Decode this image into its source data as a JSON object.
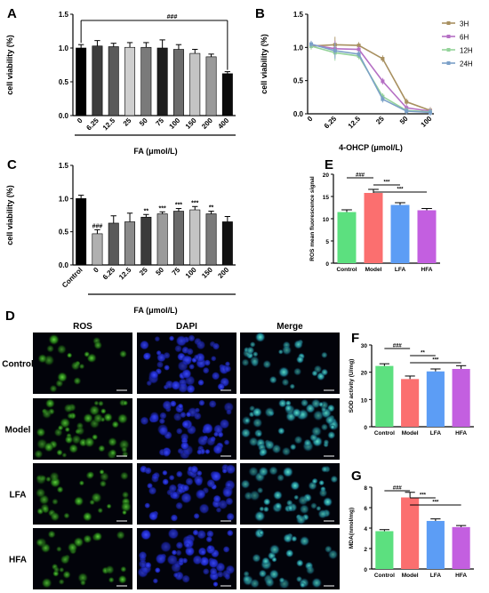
{
  "panel_labels": [
    "A",
    "B",
    "C",
    "D",
    "E",
    "F",
    "G"
  ],
  "chart_data": [
    {
      "id": "A",
      "type": "bar",
      "categories": [
        "0",
        "6.25",
        "12.5",
        "25",
        "50",
        "75",
        "100",
        "150",
        "200",
        "400"
      ],
      "values": [
        1.0,
        1.03,
        1.02,
        1.01,
        1.01,
        1.0,
        0.98,
        0.92,
        0.87,
        0.62
      ],
      "errors": [
        0.05,
        0.08,
        0.05,
        0.07,
        0.07,
        0.12,
        0.07,
        0.06,
        0.04,
        0.03
      ],
      "colors": [
        "#000000",
        "#3c3c3c",
        "#5a5a5a",
        "#cfcfcf",
        "#7a7a7a",
        "#1e1e1e",
        "#6c6c6c",
        "#c4c4c4",
        "#9a9a9a",
        "#0a0a0a"
      ],
      "xlabel": "FA (μmol/L)",
      "ylabel": "cell viability  (%)",
      "ylim": [
        0,
        1.5
      ],
      "yticks": [
        "0.0",
        "0.5",
        "1.0",
        "1.5"
      ],
      "significance": "###"
    },
    {
      "id": "B",
      "type": "line",
      "categories": [
        "0",
        "6.25",
        "12.5",
        "25",
        "50",
        "100"
      ],
      "series": [
        {
          "name": "3H",
          "color": "#a89060",
          "values": [
            1.02,
            1.04,
            1.03,
            0.83,
            0.18,
            0.05
          ]
        },
        {
          "name": "6H",
          "color": "#b56fc4",
          "values": [
            1.04,
            0.98,
            0.97,
            0.49,
            0.09,
            0.04
          ]
        },
        {
          "name": "12H",
          "color": "#94d39a",
          "values": [
            1.02,
            0.92,
            0.87,
            0.26,
            0.05,
            0.03
          ]
        },
        {
          "name": "24H",
          "color": "#7ba0c8",
          "values": [
            1.05,
            0.95,
            0.9,
            0.22,
            0.04,
            0.02
          ]
        }
      ],
      "xlabel": "4-OHCP (μmol/L)",
      "ylabel": "cell viability  (%)",
      "ylim": [
        0,
        1.5
      ],
      "yticks": [
        "0.0",
        "0.5",
        "1.0",
        "1.5"
      ]
    },
    {
      "id": "C",
      "type": "bar",
      "categories": [
        "Control",
        "0",
        "6.25",
        "12.5",
        "25",
        "50",
        "75",
        "100",
        "150",
        "200"
      ],
      "values": [
        1.0,
        0.47,
        0.63,
        0.65,
        0.72,
        0.77,
        0.81,
        0.83,
        0.77,
        0.65
      ],
      "errors": [
        0.05,
        0.06,
        0.11,
        0.13,
        0.04,
        0.03,
        0.04,
        0.05,
        0.04,
        0.08
      ],
      "colors": [
        "#000000",
        "#b0b0b0",
        "#5a5a5a",
        "#8a8a8a",
        "#3a3a3a",
        "#9a9a9a",
        "#6a6a6a",
        "#c4c4c4",
        "#7a7a7a",
        "#111111"
      ],
      "labels": [
        "",
        "###",
        "",
        "",
        "**",
        "***",
        "***",
        "***",
        "**",
        ""
      ],
      "xlabel": "FA (μmol/L)",
      "ylabel": "cell viability  (%)",
      "ylim": [
        0,
        1.5
      ],
      "yticks": [
        "0.0",
        "0.5",
        "1.0",
        "1.5"
      ]
    },
    {
      "id": "E",
      "type": "bar",
      "categories": [
        "Control",
        "Model",
        "LFA",
        "HFA"
      ],
      "values": [
        11.5,
        15.8,
        13.1,
        11.9
      ],
      "errors": [
        0.5,
        0.8,
        0.5,
        0.4
      ],
      "colors": [
        "#5ce07f",
        "#fb6f6f",
        "#5c9df5",
        "#c35fe0"
      ],
      "ylabel": "ROS mean fluorescence signal",
      "ylim": [
        0,
        20
      ],
      "yticks": [
        "0",
        "5",
        "10",
        "15",
        "20"
      ],
      "brackets": [
        {
          "from": 0,
          "to": 1,
          "label": "###"
        },
        {
          "from": 1,
          "to": 2,
          "label": "***"
        },
        {
          "from": 1,
          "to": 3,
          "label": "***"
        }
      ]
    },
    {
      "id": "F",
      "type": "bar",
      "categories": [
        "Control",
        "Model",
        "LFA",
        "HFA"
      ],
      "values": [
        22.3,
        17.5,
        20.3,
        21.2
      ],
      "errors": [
        0.8,
        1.1,
        0.9,
        1.2
      ],
      "colors": [
        "#5ce07f",
        "#fb6f6f",
        "#5c9df5",
        "#c35fe0"
      ],
      "ylabel": "SOD activity (U/mg)",
      "ylim": [
        0,
        30
      ],
      "yticks": [
        "0",
        "10",
        "20",
        "30"
      ],
      "brackets": [
        {
          "from": 0,
          "to": 1,
          "label": "###"
        },
        {
          "from": 1,
          "to": 2,
          "label": "**"
        },
        {
          "from": 1,
          "to": 3,
          "label": "***"
        }
      ]
    },
    {
      "id": "G",
      "type": "bar",
      "categories": [
        "Control",
        "Model",
        "LFA",
        "HFA"
      ],
      "values": [
        3.7,
        7.0,
        4.7,
        4.1
      ],
      "errors": [
        0.15,
        0.5,
        0.2,
        0.15
      ],
      "colors": [
        "#5ce07f",
        "#fb6f6f",
        "#5c9df5",
        "#c35fe0"
      ],
      "ylabel": "MDA(nmol/mg)",
      "ylim": [
        0,
        8
      ],
      "yticks": [
        "0",
        "2",
        "4",
        "6",
        "8"
      ],
      "brackets": [
        {
          "from": 0,
          "to": 1,
          "label": "###"
        },
        {
          "from": 1,
          "to": 2,
          "label": "***"
        },
        {
          "from": 1,
          "to": 3,
          "label": "***"
        }
      ]
    }
  ],
  "micrographs": {
    "columns": [
      "ROS",
      "DAPI",
      "Merge"
    ],
    "rows": [
      "Control",
      "Model",
      "LFA",
      "HFA"
    ]
  }
}
